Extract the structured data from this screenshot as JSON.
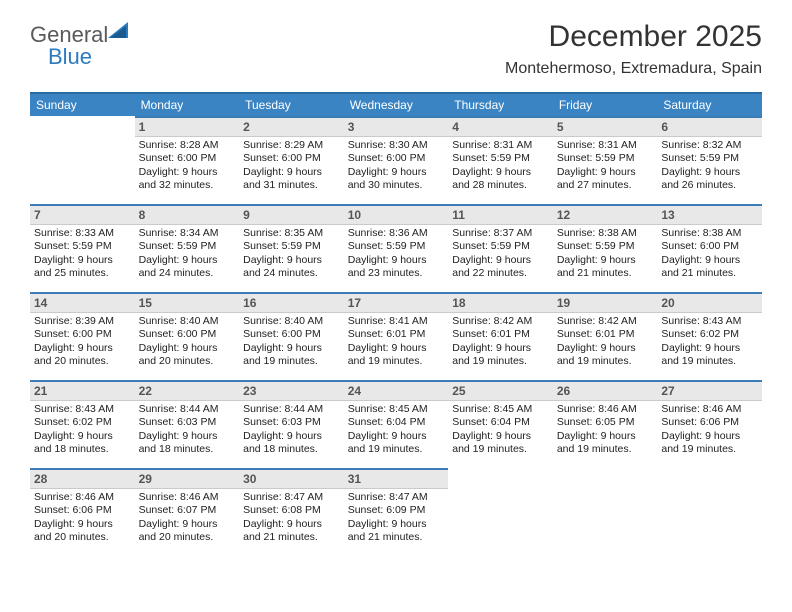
{
  "logo": {
    "line1": "General",
    "line2": "Blue"
  },
  "header": {
    "month": "December 2025",
    "location": "Montehermoso, Extremadura, Spain"
  },
  "colors": {
    "header_bg": "#3a84c4",
    "header_text": "#ffffff",
    "day_header_bg": "#e8e8e8",
    "day_border": "#3a7cb5",
    "logo_gray": "#5a5a5a",
    "logo_blue": "#2b7bbf"
  },
  "weekdays": [
    "Sunday",
    "Monday",
    "Tuesday",
    "Wednesday",
    "Thursday",
    "Friday",
    "Saturday"
  ],
  "weeks": [
    [
      null,
      {
        "n": "1",
        "sr": "8:28 AM",
        "ss": "6:00 PM",
        "dl": "9 hours and 32 minutes."
      },
      {
        "n": "2",
        "sr": "8:29 AM",
        "ss": "6:00 PM",
        "dl": "9 hours and 31 minutes."
      },
      {
        "n": "3",
        "sr": "8:30 AM",
        "ss": "6:00 PM",
        "dl": "9 hours and 30 minutes."
      },
      {
        "n": "4",
        "sr": "8:31 AM",
        "ss": "5:59 PM",
        "dl": "9 hours and 28 minutes."
      },
      {
        "n": "5",
        "sr": "8:31 AM",
        "ss": "5:59 PM",
        "dl": "9 hours and 27 minutes."
      },
      {
        "n": "6",
        "sr": "8:32 AM",
        "ss": "5:59 PM",
        "dl": "9 hours and 26 minutes."
      }
    ],
    [
      {
        "n": "7",
        "sr": "8:33 AM",
        "ss": "5:59 PM",
        "dl": "9 hours and 25 minutes."
      },
      {
        "n": "8",
        "sr": "8:34 AM",
        "ss": "5:59 PM",
        "dl": "9 hours and 24 minutes."
      },
      {
        "n": "9",
        "sr": "8:35 AM",
        "ss": "5:59 PM",
        "dl": "9 hours and 24 minutes."
      },
      {
        "n": "10",
        "sr": "8:36 AM",
        "ss": "5:59 PM",
        "dl": "9 hours and 23 minutes."
      },
      {
        "n": "11",
        "sr": "8:37 AM",
        "ss": "5:59 PM",
        "dl": "9 hours and 22 minutes."
      },
      {
        "n": "12",
        "sr": "8:38 AM",
        "ss": "5:59 PM",
        "dl": "9 hours and 21 minutes."
      },
      {
        "n": "13",
        "sr": "8:38 AM",
        "ss": "6:00 PM",
        "dl": "9 hours and 21 minutes."
      }
    ],
    [
      {
        "n": "14",
        "sr": "8:39 AM",
        "ss": "6:00 PM",
        "dl": "9 hours and 20 minutes."
      },
      {
        "n": "15",
        "sr": "8:40 AM",
        "ss": "6:00 PM",
        "dl": "9 hours and 20 minutes."
      },
      {
        "n": "16",
        "sr": "8:40 AM",
        "ss": "6:00 PM",
        "dl": "9 hours and 19 minutes."
      },
      {
        "n": "17",
        "sr": "8:41 AM",
        "ss": "6:01 PM",
        "dl": "9 hours and 19 minutes."
      },
      {
        "n": "18",
        "sr": "8:42 AM",
        "ss": "6:01 PM",
        "dl": "9 hours and 19 minutes."
      },
      {
        "n": "19",
        "sr": "8:42 AM",
        "ss": "6:01 PM",
        "dl": "9 hours and 19 minutes."
      },
      {
        "n": "20",
        "sr": "8:43 AM",
        "ss": "6:02 PM",
        "dl": "9 hours and 19 minutes."
      }
    ],
    [
      {
        "n": "21",
        "sr": "8:43 AM",
        "ss": "6:02 PM",
        "dl": "9 hours and 18 minutes."
      },
      {
        "n": "22",
        "sr": "8:44 AM",
        "ss": "6:03 PM",
        "dl": "9 hours and 18 minutes."
      },
      {
        "n": "23",
        "sr": "8:44 AM",
        "ss": "6:03 PM",
        "dl": "9 hours and 18 minutes."
      },
      {
        "n": "24",
        "sr": "8:45 AM",
        "ss": "6:04 PM",
        "dl": "9 hours and 19 minutes."
      },
      {
        "n": "25",
        "sr": "8:45 AM",
        "ss": "6:04 PM",
        "dl": "9 hours and 19 minutes."
      },
      {
        "n": "26",
        "sr": "8:46 AM",
        "ss": "6:05 PM",
        "dl": "9 hours and 19 minutes."
      },
      {
        "n": "27",
        "sr": "8:46 AM",
        "ss": "6:06 PM",
        "dl": "9 hours and 19 minutes."
      }
    ],
    [
      {
        "n": "28",
        "sr": "8:46 AM",
        "ss": "6:06 PM",
        "dl": "9 hours and 20 minutes."
      },
      {
        "n": "29",
        "sr": "8:46 AM",
        "ss": "6:07 PM",
        "dl": "9 hours and 20 minutes."
      },
      {
        "n": "30",
        "sr": "8:47 AM",
        "ss": "6:08 PM",
        "dl": "9 hours and 21 minutes."
      },
      {
        "n": "31",
        "sr": "8:47 AM",
        "ss": "6:09 PM",
        "dl": "9 hours and 21 minutes."
      },
      null,
      null,
      null
    ]
  ],
  "labels": {
    "sunrise": "Sunrise:",
    "sunset": "Sunset:",
    "daylight": "Daylight:"
  }
}
